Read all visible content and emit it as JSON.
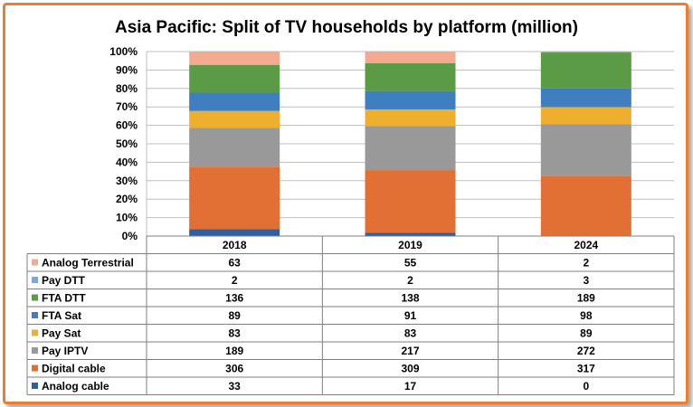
{
  "chart_data": {
    "type": "bar",
    "stacked": "percent",
    "title": "Asia Pacific: Split of TV households by platform (million)",
    "xlabel": "",
    "ylabel": "",
    "ylim": [
      0,
      100
    ],
    "yticks": [
      "0%",
      "10%",
      "20%",
      "30%",
      "40%",
      "50%",
      "60%",
      "70%",
      "80%",
      "90%",
      "100%"
    ],
    "categories": [
      "2018",
      "2019",
      "2024"
    ],
    "series": [
      {
        "name": "Analog cable",
        "color": "#2e5fa1",
        "values": [
          33,
          17,
          0
        ]
      },
      {
        "name": "Digital cable",
        "color": "#e26f33",
        "values": [
          306,
          309,
          317
        ]
      },
      {
        "name": "Pay IPTV",
        "color": "#999999",
        "values": [
          189,
          217,
          272
        ]
      },
      {
        "name": "Pay Sat",
        "color": "#eeaf2e",
        "values": [
          83,
          83,
          89
        ]
      },
      {
        "name": "FTA Sat",
        "color": "#3f7fbf",
        "values": [
          89,
          91,
          98
        ]
      },
      {
        "name": "FTA DTT",
        "color": "#5b9b45",
        "values": [
          136,
          138,
          189
        ]
      },
      {
        "name": "Pay DTT",
        "color": "#7ea6d8",
        "values": [
          2,
          2,
          3
        ]
      },
      {
        "name": "Analog Terrestrial",
        "color": "#f4aa90",
        "values": [
          63,
          55,
          2
        ]
      }
    ],
    "table_row_order": [
      "Analog Terrestrial",
      "Pay DTT",
      "FTA DTT",
      "FTA Sat",
      "Pay Sat",
      "Pay IPTV",
      "Digital cable",
      "Analog cable"
    ],
    "legend": "data-table"
  },
  "colors": {
    "frame": "#ed7d31",
    "grid": "#bfbfbf",
    "text": "#000000"
  }
}
